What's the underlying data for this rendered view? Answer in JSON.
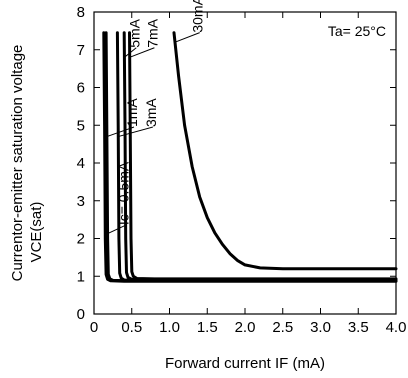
{
  "chart_data": {
    "type": "line",
    "xlabel": "Forward current IF (mA)",
    "ylabel_line1": "Currentor-emitter saturation voltage",
    "ylabel_line2": "VCE(sat)",
    "xlim": [
      0,
      4.0
    ],
    "ylim": [
      0,
      8
    ],
    "x_ticks": [
      "0",
      "0.5",
      "1.0",
      "1.5",
      "2.0",
      "2.5",
      "3.0",
      "3.5",
      "4.0"
    ],
    "y_ticks": [
      "0",
      "1",
      "2",
      "3",
      "4",
      "5",
      "6",
      "7",
      "8"
    ],
    "condition_label": "Ta= 25°C",
    "grid": false,
    "series": [
      {
        "name": "Ic= 0.5mA",
        "x": [
          0.13,
          0.14,
          0.15,
          0.16,
          0.18,
          0.22,
          0.4,
          4.0
        ],
        "y": [
          7.45,
          5.0,
          2.0,
          1.05,
          0.92,
          0.88,
          0.87,
          0.87
        ]
      },
      {
        "name": "1mA",
        "x": [
          0.16,
          0.17,
          0.18,
          0.19,
          0.21,
          0.25,
          0.45,
          4.0
        ],
        "y": [
          7.45,
          5.0,
          2.0,
          1.05,
          0.93,
          0.89,
          0.88,
          0.88
        ]
      },
      {
        "name": "3mA",
        "x": [
          0.31,
          0.32,
          0.33,
          0.34,
          0.36,
          0.4,
          0.6,
          4.0
        ],
        "y": [
          7.45,
          5.0,
          2.0,
          1.08,
          0.95,
          0.9,
          0.89,
          0.89
        ]
      },
      {
        "name": "5mA",
        "x": [
          0.4,
          0.41,
          0.42,
          0.43,
          0.45,
          0.5,
          0.7,
          4.0
        ],
        "y": [
          7.45,
          5.0,
          2.0,
          1.1,
          0.97,
          0.92,
          0.91,
          0.91
        ]
      },
      {
        "name": "7mA",
        "x": [
          0.47,
          0.48,
          0.49,
          0.5,
          0.52,
          0.57,
          0.8,
          4.0
        ],
        "y": [
          7.45,
          5.0,
          2.0,
          1.12,
          1.0,
          0.94,
          0.93,
          0.93
        ]
      },
      {
        "name": "30mA",
        "x": [
          1.06,
          1.12,
          1.2,
          1.3,
          1.4,
          1.5,
          1.6,
          1.7,
          1.8,
          1.9,
          2.0,
          2.2,
          2.5,
          3.0,
          4.0
        ],
        "y": [
          7.45,
          6.3,
          5.0,
          3.9,
          3.1,
          2.55,
          2.15,
          1.85,
          1.6,
          1.42,
          1.3,
          1.22,
          1.2,
          1.2,
          1.2
        ]
      }
    ],
    "labels": [
      {
        "text": "Ic= 0.5mA",
        "series": "Ic= 0.5mA",
        "x": 0.42,
        "y": 2.3
      },
      {
        "text": "1mA",
        "series": "1mA",
        "x": 0.53,
        "y": 4.9
      },
      {
        "text": "3mA",
        "series": "3mA",
        "x": 0.78,
        "y": 4.9
      },
      {
        "text": "5mA",
        "series": "5mA",
        "x": 0.56,
        "y": 7.0
      },
      {
        "text": "7mA",
        "series": "7mA",
        "x": 0.8,
        "y": 7.0
      },
      {
        "text": "30mA",
        "series": "30mA",
        "x": 1.4,
        "y": 7.4
      }
    ]
  }
}
